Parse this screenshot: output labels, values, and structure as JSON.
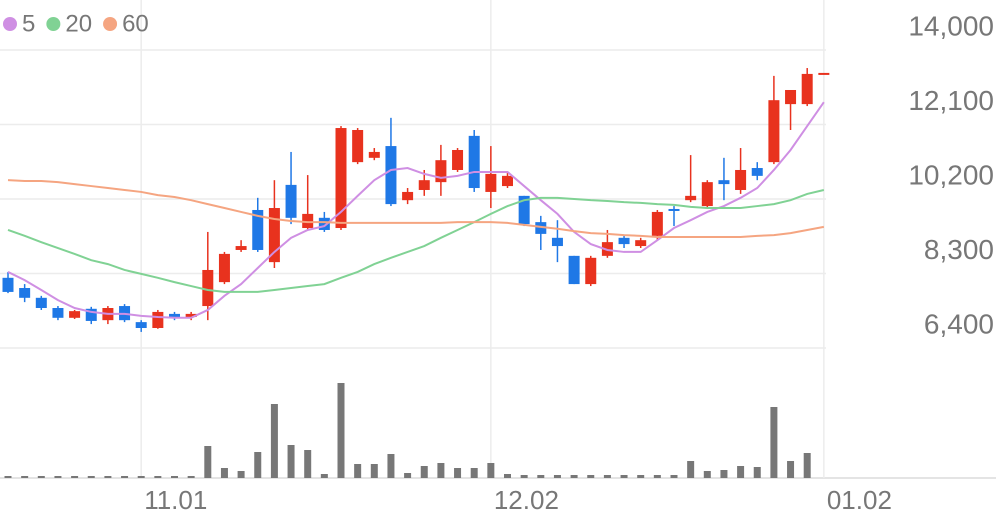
{
  "chart_data": [
    {
      "type": "candlestick",
      "categories": [
        null,
        null,
        null,
        null,
        null,
        null,
        null,
        null,
        "11.01",
        null,
        null,
        null,
        null,
        null,
        null,
        null,
        null,
        null,
        null,
        null,
        null,
        null,
        null,
        null,
        null,
        null,
        null,
        null,
        null,
        "12.02",
        null,
        null,
        null,
        null,
        null,
        null,
        null,
        null,
        null,
        null,
        null,
        null,
        null,
        null,
        null,
        null,
        null,
        null,
        null,
        "01.02"
      ],
      "open": [
        8190,
        7930,
        7680,
        7420,
        7170,
        7400,
        7110,
        7470,
        7060,
        6910,
        7270,
        7190,
        7470,
        8080,
        8900,
        9920,
        8590,
        10560,
        9460,
        9720,
        9460,
        11140,
        11250,
        11550,
        10170,
        10430,
        10630,
        10940,
        11810,
        10380,
        10530,
        10280,
        9610,
        9210,
        8750,
        8030,
        8750,
        9210,
        9000,
        9260,
        9920,
        10170,
        10020,
        10680,
        10430,
        10990,
        11140,
        12620,
        12620,
        13390
      ],
      "high": [
        8340,
        8030,
        7730,
        7470,
        7370,
        7450,
        7470,
        7520,
        7110,
        7370,
        7320,
        7320,
        9360,
        8850,
        9150,
        10230,
        10680,
        11400,
        10810,
        9870,
        12060,
        12010,
        11500,
        12270,
        10480,
        10940,
        11580,
        11500,
        11960,
        11550,
        10890,
        10280,
        9770,
        9660,
        8750,
        8750,
        9410,
        9260,
        9210,
        9920,
        10020,
        11320,
        10680,
        11250,
        11500,
        11140,
        13340,
        12980,
        13540,
        13390
      ],
      "low": [
        7800,
        7570,
        7370,
        7110,
        7140,
        7010,
        7010,
        7060,
        6810,
        6890,
        7110,
        7110,
        7110,
        8030,
        8850,
        8850,
        8440,
        9560,
        9410,
        9360,
        9410,
        11090,
        11190,
        10020,
        10070,
        10280,
        10280,
        10890,
        10380,
        9970,
        10480,
        9510,
        8900,
        8590,
        8030,
        7980,
        8700,
        8950,
        8950,
        9150,
        9510,
        10120,
        9970,
        10170,
        10330,
        10680,
        11090,
        11960,
        12570,
        13390
      ],
      "close": [
        7830,
        7680,
        7420,
        7170,
        7340,
        7090,
        7420,
        7110,
        6910,
        7320,
        7170,
        7270,
        8390,
        8800,
        9000,
        8900,
        9970,
        9720,
        9820,
        9410,
        12010,
        11960,
        11400,
        10070,
        10380,
        10680,
        11190,
        11450,
        10480,
        10840,
        10790,
        9560,
        9310,
        9000,
        8030,
        8700,
        9100,
        9050,
        9150,
        9870,
        9870,
        10280,
        10630,
        10580,
        10940,
        10790,
        12720,
        12980,
        13390,
        13390
      ],
      "up_color": "#e8321e",
      "down_color": "#1f78e6",
      "series": [
        {
          "name": "5",
          "color": "#cf8fe3",
          "values": [
            8340,
            8130,
            7880,
            7620,
            7420,
            7320,
            7270,
            7270,
            7220,
            7190,
            7170,
            7170,
            7370,
            7730,
            8030,
            8440,
            8850,
            9210,
            9410,
            9510,
            9870,
            10280,
            10680,
            10940,
            10990,
            10840,
            10740,
            10790,
            10890,
            10890,
            10890,
            10530,
            10170,
            9820,
            9360,
            9050,
            8900,
            8850,
            8850,
            9150,
            9460,
            9660,
            9870,
            10020,
            10230,
            10480,
            10940,
            11450,
            12060,
            12670
          ]
        },
        {
          "name": "20",
          "color": "#80d294",
          "values": [
            9410,
            9260,
            9100,
            8950,
            8800,
            8640,
            8540,
            8390,
            8290,
            8190,
            8080,
            7980,
            7880,
            7830,
            7830,
            7830,
            7880,
            7930,
            7980,
            8030,
            8190,
            8340,
            8540,
            8700,
            8850,
            9000,
            9210,
            9410,
            9610,
            9820,
            10020,
            10170,
            10230,
            10230,
            10200,
            10170,
            10150,
            10120,
            10100,
            10070,
            10050,
            10000,
            9970,
            9970,
            9970,
            10020,
            10070,
            10170,
            10330,
            10430
          ]
        },
        {
          "name": "60",
          "color": "#f5a581",
          "values": [
            10680,
            10660,
            10660,
            10630,
            10580,
            10530,
            10480,
            10430,
            10380,
            10300,
            10250,
            10170,
            10070,
            9970,
            9870,
            9770,
            9690,
            9640,
            9610,
            9610,
            9590,
            9590,
            9590,
            9590,
            9590,
            9590,
            9590,
            9610,
            9610,
            9610,
            9590,
            9540,
            9490,
            9440,
            9380,
            9330,
            9310,
            9280,
            9260,
            9230,
            9230,
            9230,
            9230,
            9230,
            9230,
            9260,
            9280,
            9330,
            9410,
            9490
          ]
        }
      ],
      "ylim": [
        6400,
        14000
      ],
      "yticks": [
        {
          "value": 6400,
          "label": "6,400"
        },
        {
          "value": 8300,
          "label": "8,300"
        },
        {
          "value": 10200,
          "label": "10,200"
        },
        {
          "value": 12100,
          "label": "12,100"
        },
        {
          "value": 14000,
          "label": "14,000"
        }
      ],
      "grid": true
    },
    {
      "type": "bar",
      "color": "#777777",
      "values": [
        2,
        2,
        2,
        2,
        2,
        2,
        2,
        2,
        2,
        2,
        2,
        2,
        32,
        10,
        7,
        26,
        74,
        33,
        28,
        4,
        95,
        14,
        14,
        24,
        5,
        12,
        15,
        10,
        10,
        15,
        4,
        3,
        3,
        3,
        3,
        3,
        3,
        3,
        3,
        3,
        3,
        17,
        7,
        8,
        12,
        11,
        71,
        17,
        25,
        null
      ],
      "ylim": [
        0,
        100
      ]
    }
  ]
}
